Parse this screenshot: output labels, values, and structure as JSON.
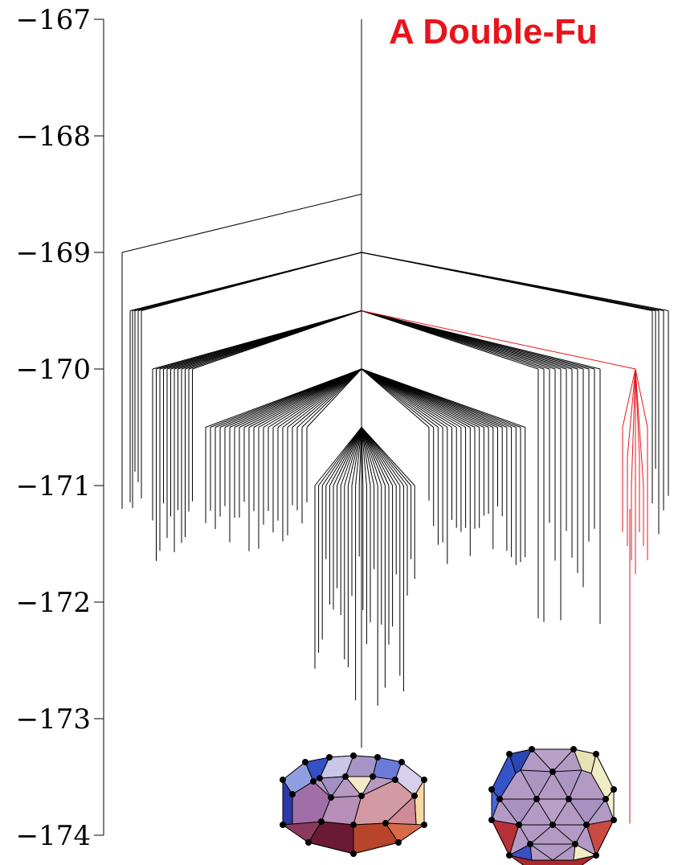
{
  "chart_data": {
    "type": "tree",
    "title": "A Double-Fu",
    "title_color": "#e8141c",
    "highlight_color": "#e8141c",
    "line_color": "#000000",
    "ylim": [
      -174,
      -167
    ],
    "yticks": [
      -167,
      -168,
      -169,
      -170,
      -171,
      -172,
      -173,
      -174
    ],
    "ytick_labels": [
      "−167",
      "−168",
      "−169",
      "−170",
      "−171",
      "−172",
      "−173",
      "−174"
    ],
    "root_branch": {
      "top": -167,
      "bottom": -173.25
    },
    "levels": [
      {
        "energy": -168.5,
        "from": -167
      },
      {
        "energy": -169.0,
        "from": -168.5
      },
      {
        "energy": -169.5,
        "from": -169.0
      },
      {
        "energy": -170.0,
        "from": -169.5
      },
      {
        "energy": -170.5,
        "from": -170.0
      }
    ],
    "highlighted_path": [
      -169.5,
      -170.0,
      -173.9
    ],
    "insets": [
      {
        "icon": "polyhedron-side-view-icon"
      },
      {
        "icon": "polyhedron-top-view-icon"
      }
    ]
  }
}
